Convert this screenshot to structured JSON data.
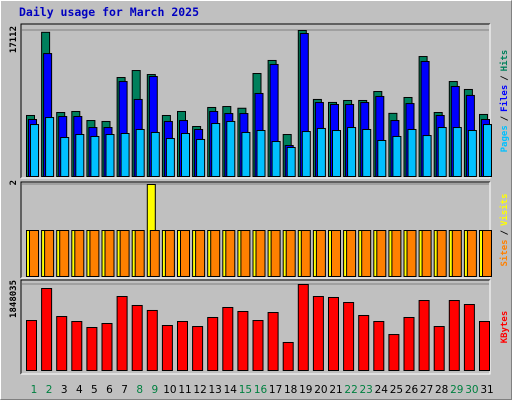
{
  "chart_data": [
    {
      "type": "bar",
      "title": "Daily usage for March 2025",
      "ylim": [
        0,
        17112
      ],
      "yticks": [
        17112
      ],
      "legend_separator": "/",
      "series": [
        {
          "name": "Hits",
          "color": "#00805c",
          "values": [
            7150,
            16900,
            7500,
            7620,
            6560,
            6450,
            11600,
            12420,
            11950,
            7150,
            7620,
            5860,
            8090,
            8200,
            8000,
            12070,
            13600,
            4920,
            17112,
            9030,
            8680,
            8910,
            8910,
            9960,
            7400,
            9260,
            14060,
            7500,
            11130,
            10200,
            7270
          ]
        },
        {
          "name": "Files",
          "color": "#0000ff",
          "values": [
            6680,
            14410,
            7030,
            7030,
            5740,
            5740,
            11130,
            9030,
            11720,
            6450,
            6560,
            5510,
            7620,
            7380,
            7380,
            9730,
            13130,
            3630,
            16760,
            8670,
            8440,
            8440,
            8670,
            9380,
            6560,
            8550,
            13480,
            7150,
            10550,
            9500,
            6680
          ]
        },
        {
          "name": "Pages",
          "color": "#00c0ff",
          "values": [
            6090,
            6910,
            4570,
            4920,
            4690,
            4920,
            5040,
            5510,
            5160,
            4450,
            5040,
            4340,
            6210,
            6450,
            5160,
            5390,
            4100,
            3400,
            5270,
            5630,
            5390,
            5740,
            5510,
            4220,
            4690,
            5510,
            4800,
            5740,
            5740,
            5390,
            6090
          ]
        }
      ]
    },
    {
      "type": "bar",
      "ylim": [
        0,
        2
      ],
      "yticks": [
        2
      ],
      "legend_separator": "/",
      "series": [
        {
          "name": "Visits",
          "color": "#ffff00",
          "values": [
            1,
            1,
            1,
            1,
            1,
            1,
            1,
            1,
            2,
            1,
            1,
            1,
            1,
            1,
            1,
            1,
            1,
            1,
            1,
            1,
            1,
            1,
            1,
            1,
            1,
            1,
            1,
            1,
            1,
            1,
            1
          ]
        },
        {
          "name": "Sites",
          "color": "#ff8000",
          "values": [
            1,
            1,
            1,
            1,
            1,
            1,
            1,
            1,
            1,
            1,
            1,
            1,
            1,
            1,
            1,
            1,
            1,
            1,
            1,
            1,
            1,
            1,
            1,
            1,
            1,
            1,
            1,
            1,
            1,
            1,
            1
          ]
        }
      ]
    },
    {
      "type": "bar",
      "ylim": [
        0,
        1848035
      ],
      "yticks": [
        1848035
      ],
      "legend_separator": "/",
      "categories": [
        "1",
        "2",
        "3",
        "4",
        "5",
        "6",
        "7",
        "8",
        "9",
        "10",
        "11",
        "12",
        "13",
        "14",
        "15",
        "16",
        "17",
        "18",
        "19",
        "20",
        "21",
        "22",
        "23",
        "24",
        "25",
        "26",
        "27",
        "28",
        "29",
        "30",
        "31"
      ],
      "category_colors": [
        "#008040",
        "#008040",
        "#000000",
        "#000000",
        "#000000",
        "#000000",
        "#000000",
        "#008040",
        "#008040",
        "#000000",
        "#000000",
        "#000000",
        "#000000",
        "#000000",
        "#008040",
        "#008040",
        "#000000",
        "#000000",
        "#000000",
        "#000000",
        "#000000",
        "#008040",
        "#008040",
        "#000000",
        "#000000",
        "#000000",
        "#000000",
        "#000000",
        "#008040",
        "#008040",
        "#000000"
      ],
      "series": [
        {
          "name": "KBytes",
          "color": "#ff0000",
          "values": [
            1074000,
            1762000,
            1160000,
            1053000,
            924000,
            1010000,
            1590000,
            1397000,
            1290000,
            967000,
            1053000,
            945000,
            1139000,
            1354000,
            1268000,
            1074000,
            1246000,
            602000,
            1848035,
            1590000,
            1569000,
            1461000,
            1182000,
            1053000,
            773000,
            1139000,
            1504000,
            945000,
            1504000,
            1418000,
            1053000
          ]
        }
      ]
    }
  ]
}
